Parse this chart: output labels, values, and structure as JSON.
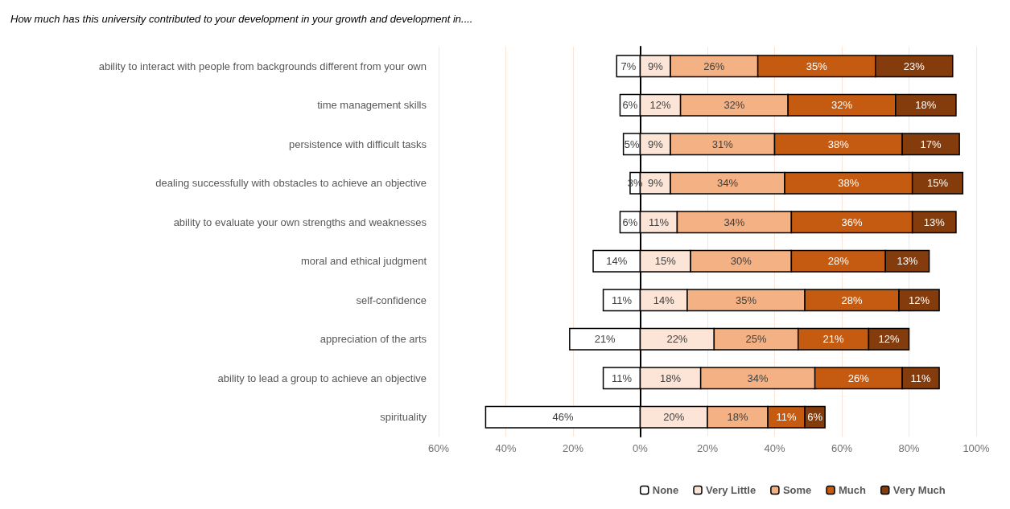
{
  "chart_data": {
    "type": "bar",
    "orientation": "horizontal",
    "title": "How much has this university contributed to your development in your growth and development in....",
    "categories": [
      "ability to interact with people from backgrounds different from your own",
      "time management skills",
      "persistence with difficult tasks",
      "dealing successfully with obstacles to achieve an objective",
      "ability to evaluate your own strengths and weaknesses",
      "moral and ethical judgment",
      "self-confidence",
      "appreciation of the arts",
      "ability to lead a group to achieve an objective",
      "spirituality"
    ],
    "series": [
      {
        "name": "None",
        "color": "#ffffff",
        "base": [
          -7,
          -6,
          -5,
          -3,
          -6,
          -14,
          -11,
          -21,
          -11,
          -46
        ],
        "values": [
          7,
          6,
          5,
          3,
          6,
          14,
          11,
          21,
          11,
          46
        ],
        "value_labels": [
          "7%",
          "6%",
          "5%",
          "3%",
          "6%",
          "14%",
          "11%",
          "21%",
          "11%",
          "46%"
        ]
      },
      {
        "name": "Very Little",
        "color": "#fce4d6",
        "base": [
          0,
          0,
          0,
          0,
          0,
          0,
          0,
          0,
          0,
          0
        ],
        "values": [
          9,
          12,
          9,
          9,
          11,
          15,
          14,
          22,
          18,
          20
        ],
        "value_labels": [
          "9%",
          "12%",
          "9%",
          "9%",
          "11%",
          "15%",
          "14%",
          "22%",
          "18%",
          "20%"
        ]
      },
      {
        "name": "Some",
        "color": "#f4b183",
        "base": [
          9,
          12,
          9,
          9,
          11,
          15,
          14,
          22,
          18,
          20
        ],
        "values": [
          26,
          32,
          31,
          34,
          34,
          30,
          35,
          25,
          34,
          18
        ],
        "value_labels": [
          "26%",
          "32%",
          "31%",
          "34%",
          "34%",
          "30%",
          "35%",
          "25%",
          "34%",
          "18%"
        ]
      },
      {
        "name": "Much",
        "color": "#c55a11",
        "base": [
          35,
          44,
          40,
          43,
          45,
          45,
          49,
          47,
          52,
          38
        ],
        "values": [
          35,
          32,
          38,
          38,
          36,
          28,
          28,
          21,
          26,
          11
        ],
        "value_labels": [
          "35%",
          "32%",
          "38%",
          "38%",
          "36%",
          "28%",
          "28%",
          "21%",
          "26%",
          "11%"
        ]
      },
      {
        "name": "Very Much",
        "color": "#843c0c",
        "base": [
          70,
          76,
          78,
          81,
          81,
          73,
          77,
          68,
          78,
          49
        ],
        "values": [
          23,
          18,
          17,
          15,
          13,
          13,
          12,
          12,
          11,
          6
        ],
        "value_labels": [
          "23%",
          "18%",
          "17%",
          "15%",
          "13%",
          "13%",
          "12%",
          "12%",
          "11%",
          "6%"
        ]
      }
    ],
    "xlim": [
      -60,
      100
    ],
    "xticks": [
      {
        "value": -60,
        "label": "60%"
      },
      {
        "value": -40,
        "label": "40%"
      },
      {
        "value": -20,
        "label": "20%"
      },
      {
        "value": 0,
        "label": "0%"
      },
      {
        "value": 20,
        "label": "20%"
      },
      {
        "value": 40,
        "label": "40%"
      },
      {
        "value": 60,
        "label": "60%"
      },
      {
        "value": 80,
        "label": "80%"
      },
      {
        "value": 100,
        "label": "100%"
      }
    ],
    "grid": "x",
    "legend": "bottom"
  }
}
